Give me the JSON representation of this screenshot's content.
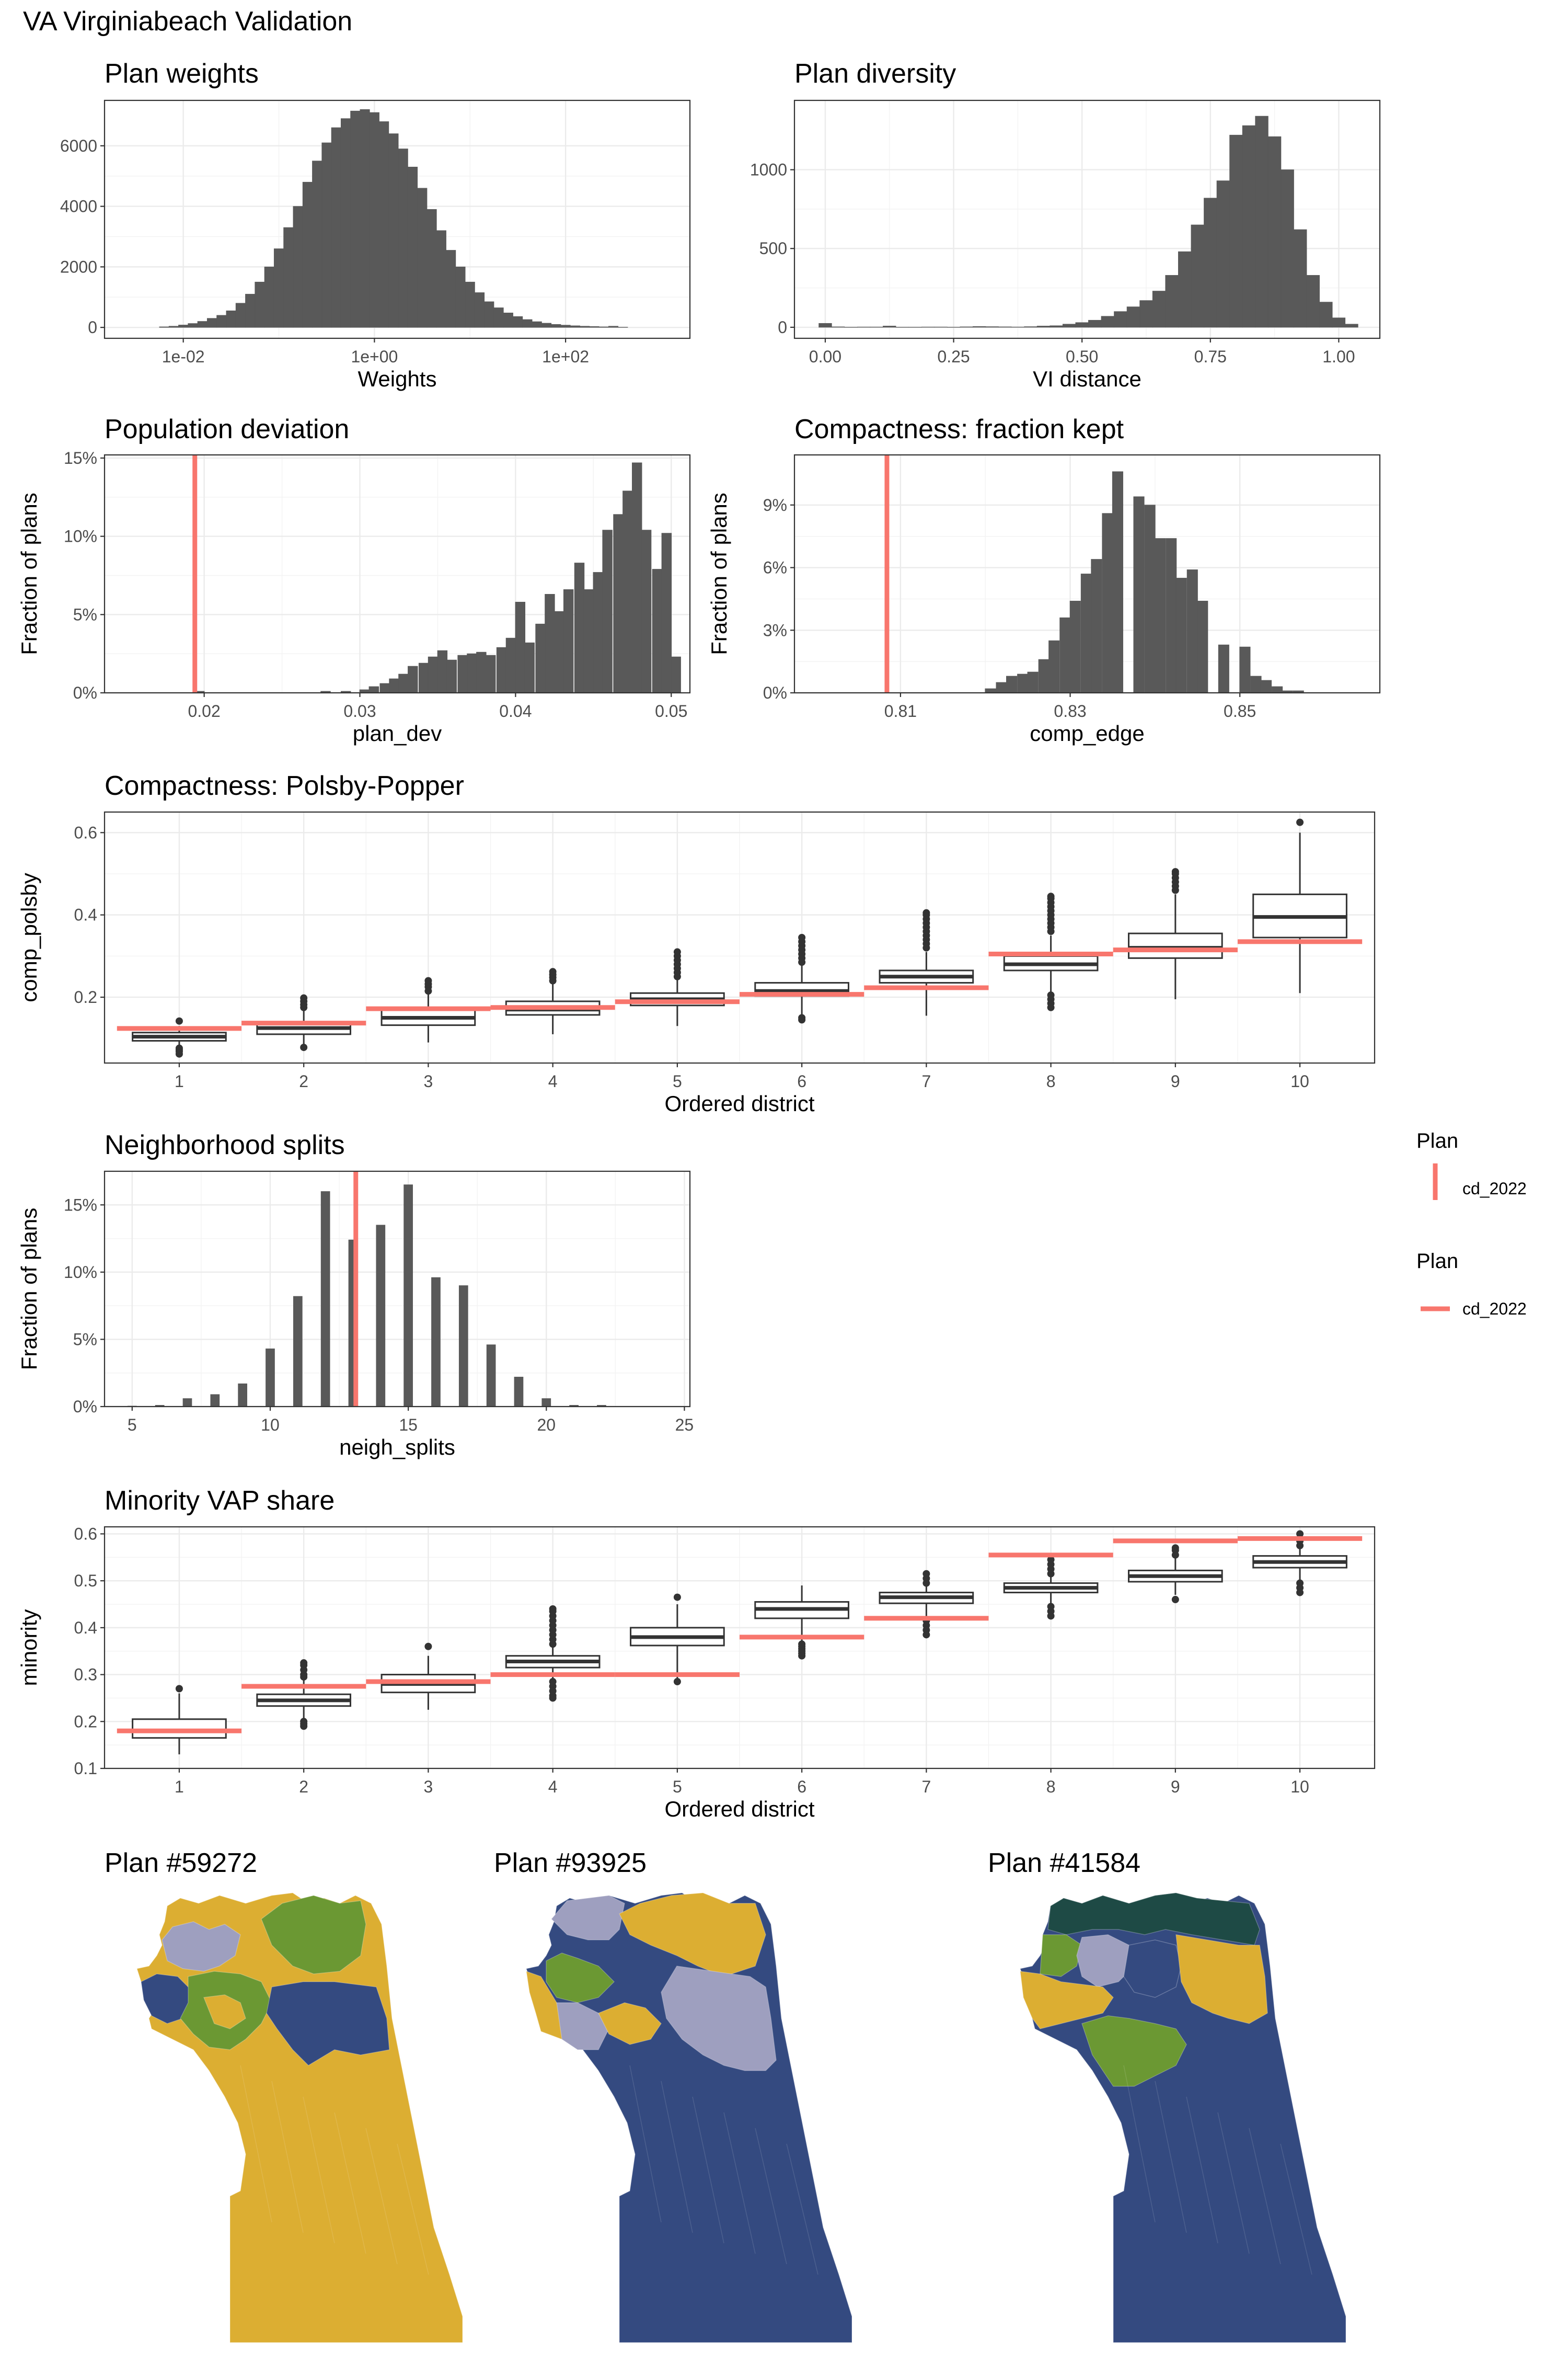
{
  "figure_title": "VA Virginiabeach Validation",
  "colors": {
    "bar": "#595959",
    "reference": "#f8766d",
    "box_line": "#333333",
    "map_yellow": "#dcae32",
    "map_navy": "#344a80",
    "map_green": "#6b9833",
    "map_lavender": "#9e9fbf",
    "map_darkgreen": "#1e4a45"
  },
  "legends": [
    {
      "title": "Plan",
      "label": "cd_2022",
      "key": "vertical-line"
    },
    {
      "title": "Plan",
      "label": "cd_2022",
      "key": "horizontal-line"
    }
  ],
  "chart_data": [
    {
      "id": "weights",
      "type": "bar",
      "title": "Plan weights",
      "xlabel": "Weights",
      "ylabel": "",
      "x_scale": "log10",
      "xlim": [
        0.0015,
        2000
      ],
      "ylim": [
        -360,
        7500
      ],
      "x_ticks": [
        0.01,
        1,
        100
      ],
      "x_tick_labels": [
        "1e-02",
        "1e+00",
        "1e+02"
      ],
      "y_ticks": [
        0,
        2000,
        4000,
        6000
      ],
      "y_tick_labels": [
        "0",
        "2000",
        "4000",
        "6000"
      ],
      "bin_centers_log10": [
        -2.2,
        -2.1,
        -2.0,
        -1.9,
        -1.8,
        -1.7,
        -1.6,
        -1.5,
        -1.4,
        -1.3,
        -1.2,
        -1.1,
        -1.0,
        -0.9,
        -0.8,
        -0.7,
        -0.6,
        -0.5,
        -0.4,
        -0.3,
        -0.2,
        -0.1,
        0.0,
        0.1,
        0.2,
        0.3,
        0.4,
        0.5,
        0.6,
        0.7,
        0.8,
        0.9,
        1.0,
        1.1,
        1.2,
        1.3,
        1.4,
        1.5,
        1.6,
        1.7,
        1.8,
        1.9,
        2.0,
        2.1,
        2.2,
        2.3,
        2.4,
        2.5,
        2.6
      ],
      "values": [
        20,
        40,
        80,
        130,
        200,
        300,
        400,
        550,
        800,
        1100,
        1500,
        2000,
        2600,
        3300,
        4000,
        4800,
        5500,
        6100,
        6600,
        6900,
        7150,
        7200,
        7100,
        6800,
        6400,
        5900,
        5300,
        4600,
        3900,
        3200,
        2550,
        2000,
        1500,
        1150,
        850,
        650,
        480,
        360,
        260,
        190,
        140,
        100,
        75,
        55,
        40,
        30,
        20,
        40,
        10
      ]
    },
    {
      "id": "diversity",
      "type": "bar",
      "title": "Plan diversity",
      "xlabel": "VI distance",
      "ylabel": "",
      "xlim": [
        -0.06,
        1.08
      ],
      "ylim": [
        -70,
        1440
      ],
      "x_ticks": [
        0,
        0.25,
        0.5,
        0.75,
        1
      ],
      "x_tick_labels": [
        "0.00",
        "0.25",
        "0.50",
        "0.75",
        "1.00"
      ],
      "y_ticks": [
        0,
        500,
        1000
      ],
      "y_tick_labels": [
        "0",
        "500",
        "1000"
      ],
      "bin_width": 0.025,
      "bin_centers": [
        0.0,
        0.025,
        0.05,
        0.075,
        0.1,
        0.125,
        0.15,
        0.175,
        0.2,
        0.225,
        0.25,
        0.275,
        0.3,
        0.325,
        0.35,
        0.375,
        0.4,
        0.425,
        0.45,
        0.475,
        0.5,
        0.525,
        0.55,
        0.575,
        0.6,
        0.625,
        0.65,
        0.675,
        0.7,
        0.725,
        0.75,
        0.775,
        0.8,
        0.825,
        0.85,
        0.875,
        0.9,
        0.925,
        0.95,
        0.975,
        1.0,
        1.025
      ],
      "values": [
        25,
        3,
        1,
        2,
        2,
        8,
        1,
        1,
        2,
        2,
        1,
        3,
        5,
        4,
        3,
        2,
        4,
        8,
        10,
        20,
        30,
        45,
        70,
        100,
        130,
        170,
        230,
        330,
        480,
        650,
        820,
        930,
        1220,
        1280,
        1340,
        1210,
        1000,
        620,
        330,
        160,
        60,
        20
      ]
    },
    {
      "id": "popdev",
      "type": "bar",
      "title": "Population deviation",
      "xlabel": "plan_dev",
      "ylabel": "Fraction of plans",
      "xlim": [
        0.0136,
        0.0512
      ],
      "ylim": [
        0,
        0.152
      ],
      "x_ticks": [
        0.02,
        0.03,
        0.04,
        0.05
      ],
      "x_tick_labels": [
        "0.02",
        "0.03",
        "0.04",
        "0.05"
      ],
      "y_ticks": [
        0,
        0.05,
        0.1,
        0.15
      ],
      "y_tick_labels": [
        "0%",
        "5%",
        "10%",
        "15%"
      ],
      "reference_x": 0.0194,
      "bin_width": 0.000625,
      "bin_centers": [
        0.0197,
        0.0203,
        0.0209,
        0.0216,
        0.0222,
        0.0228,
        0.0234,
        0.0241,
        0.0247,
        0.0253,
        0.0259,
        0.0266,
        0.0272,
        0.0278,
        0.0284,
        0.0291,
        0.0297,
        0.0303,
        0.0309,
        0.0316,
        0.0322,
        0.0328,
        0.0334,
        0.0341,
        0.0347,
        0.0353,
        0.0359,
        0.0366,
        0.0372,
        0.0378,
        0.0384,
        0.0391,
        0.0397,
        0.0403,
        0.0409,
        0.0416,
        0.0422,
        0.0428,
        0.0434,
        0.0441,
        0.0447,
        0.0453,
        0.0459,
        0.0466,
        0.0472,
        0.0478,
        0.0484,
        0.0491,
        0.0497,
        0.0503
      ],
      "values": [
        0.001,
        0,
        0,
        0,
        0,
        0,
        0,
        0,
        0,
        0,
        0,
        0,
        0,
        0.001,
        0,
        0.001,
        0,
        0.002,
        0.004,
        0.006,
        0.009,
        0.012,
        0.017,
        0.019,
        0.023,
        0.027,
        0.021,
        0.024,
        0.025,
        0.026,
        0.024,
        0.029,
        0.035,
        0.058,
        0.032,
        0.044,
        0.063,
        0.052,
        0.066,
        0.083,
        0.066,
        0.077,
        0.104,
        0.114,
        0.129,
        0.147,
        0.104,
        0.079,
        0.102,
        0.023
      ]
    },
    {
      "id": "compedge",
      "type": "bar",
      "title": "Compactness: fraction kept",
      "xlabel": "comp_edge",
      "ylabel": "Fraction of plans",
      "xlim": [
        0.7975,
        0.8665
      ],
      "ylim": [
        0,
        0.114
      ],
      "x_ticks": [
        0.81,
        0.83,
        0.85
      ],
      "x_tick_labels": [
        "0.81",
        "0.83",
        "0.85"
      ],
      "y_ticks": [
        0,
        0.03,
        0.06,
        0.09
      ],
      "y_tick_labels": [
        "0%",
        "3%",
        "6%",
        "9%"
      ],
      "reference_x": 0.8084,
      "bin_width": 0.00125,
      "bin_centers": [
        0.8206,
        0.8219,
        0.8231,
        0.8244,
        0.8256,
        0.8269,
        0.8281,
        0.8294,
        0.8306,
        0.8319,
        0.8331,
        0.8344,
        0.8356,
        0.8369,
        0.8381,
        0.8394,
        0.8406,
        0.8419,
        0.8431,
        0.8444,
        0.8456,
        0.8469,
        0.8481,
        0.8494,
        0.8506,
        0.8519,
        0.8531,
        0.8544,
        0.8556,
        0.8569,
        0.8581,
        0.8594,
        0.8606
      ],
      "values": [
        0.002,
        0.005,
        0.008,
        0.009,
        0.01,
        0.016,
        0.025,
        0.036,
        0.044,
        0.057,
        0.064,
        0.086,
        0.106,
        0,
        0.094,
        0.09,
        0.074,
        0.074,
        0.055,
        0.059,
        0.044,
        0,
        0.023,
        0,
        0.022,
        0.008,
        0.006,
        0.003,
        0.001,
        0.001,
        0,
        0,
        0
      ]
    },
    {
      "id": "polsby",
      "type": "box",
      "title": "Compactness: Polsby-Popper",
      "xlabel": "Ordered district",
      "ylabel": "comp_polsby",
      "categories": [
        "1",
        "2",
        "3",
        "4",
        "5",
        "6",
        "7",
        "8",
        "9",
        "10"
      ],
      "ylim": [
        0.04,
        0.65
      ],
      "y_ticks": [
        0.2,
        0.4,
        0.6
      ],
      "y_tick_labels": [
        "0.2",
        "0.4",
        "0.6"
      ],
      "boxes": [
        {
          "min": 0.08,
          "q1": 0.094,
          "median": 0.104,
          "q3": 0.114,
          "max": 0.13,
          "outliers": [
            0.062,
            0.068,
            0.072,
            0.076,
            0.142
          ]
        },
        {
          "min": 0.075,
          "q1": 0.11,
          "median": 0.125,
          "q3": 0.14,
          "max": 0.17,
          "outliers": [
            0.078,
            0.175,
            0.182,
            0.19,
            0.198
          ]
        },
        {
          "min": 0.09,
          "q1": 0.132,
          "median": 0.15,
          "q3": 0.17,
          "max": 0.21,
          "outliers": [
            0.215,
            0.225,
            0.232,
            0.24
          ]
        },
        {
          "min": 0.11,
          "q1": 0.157,
          "median": 0.17,
          "q3": 0.19,
          "max": 0.235,
          "outliers": [
            0.24,
            0.248,
            0.255,
            0.262
          ]
        },
        {
          "min": 0.13,
          "q1": 0.18,
          "median": 0.195,
          "q3": 0.21,
          "max": 0.245,
          "outliers": [
            0.25,
            0.26,
            0.27,
            0.28,
            0.29,
            0.3,
            0.31
          ]
        },
        {
          "min": 0.14,
          "q1": 0.203,
          "median": 0.215,
          "q3": 0.235,
          "max": 0.28,
          "outliers": [
            0.285,
            0.295,
            0.305,
            0.315,
            0.325,
            0.335,
            0.345,
            0.145,
            0.15
          ]
        },
        {
          "min": 0.155,
          "q1": 0.235,
          "median": 0.25,
          "q3": 0.265,
          "max": 0.31,
          "outliers": [
            0.32,
            0.33,
            0.34,
            0.35,
            0.36,
            0.37,
            0.38,
            0.39,
            0.4,
            0.405
          ]
        },
        {
          "min": 0.19,
          "q1": 0.265,
          "median": 0.28,
          "q3": 0.3,
          "max": 0.35,
          "outliers": [
            0.36,
            0.37,
            0.38,
            0.39,
            0.4,
            0.41,
            0.42,
            0.43,
            0.44,
            0.445,
            0.205,
            0.195,
            0.185,
            0.175
          ]
        },
        {
          "min": 0.195,
          "q1": 0.295,
          "median": 0.32,
          "q3": 0.355,
          "max": 0.45,
          "outliers": [
            0.46,
            0.47,
            0.48,
            0.49,
            0.5,
            0.505
          ]
        },
        {
          "min": 0.21,
          "q1": 0.345,
          "median": 0.395,
          "q3": 0.45,
          "max": 0.6,
          "outliers": [
            0.625
          ]
        }
      ],
      "reference": [
        0.124,
        0.137,
        0.172,
        0.175,
        0.189,
        0.207,
        0.223,
        0.305,
        0.315,
        0.335
      ]
    },
    {
      "id": "neigh",
      "type": "bar",
      "title": "Neighborhood splits",
      "xlabel": "neigh_splits",
      "ylabel": "Fraction of plans",
      "xlim": [
        4,
        25.2
      ],
      "ylim": [
        0,
        0.175
      ],
      "x_ticks": [
        5,
        10,
        15,
        20,
        25
      ],
      "x_tick_labels": [
        "5",
        "10",
        "15",
        "20",
        "25"
      ],
      "y_ticks": [
        0,
        0.05,
        0.1,
        0.15
      ],
      "y_tick_labels": [
        "0%",
        "5%",
        "10%",
        "15%"
      ],
      "reference_x": 13.1,
      "bar_width": 0.32,
      "bin_centers": [
        5,
        6,
        7,
        8,
        9,
        10,
        11,
        12,
        13,
        14,
        15,
        16,
        17,
        18,
        19,
        20,
        21,
        22,
        23,
        24
      ],
      "values": [
        0.0004,
        0.001,
        0.006,
        0.009,
        0.017,
        0.043,
        0.082,
        0.16,
        0.124,
        0.135,
        0.165,
        0.096,
        0.09,
        0.046,
        0.022,
        0.006,
        0.001,
        0.001,
        0.0002,
        0
      ]
    },
    {
      "id": "minority",
      "type": "box",
      "title": "Minority VAP share",
      "xlabel": "Ordered district",
      "ylabel": "minority",
      "categories": [
        "1",
        "2",
        "3",
        "4",
        "5",
        "6",
        "7",
        "8",
        "9",
        "10"
      ],
      "ylim": [
        0.1,
        0.615
      ],
      "y_ticks": [
        0.1,
        0.2,
        0.3,
        0.4,
        0.5,
        0.6
      ],
      "y_tick_labels": [
        "0.1",
        "0.2",
        "0.3",
        "0.4",
        "0.5",
        "0.6"
      ],
      "boxes": [
        {
          "min": 0.13,
          "q1": 0.165,
          "median": 0.18,
          "q3": 0.205,
          "max": 0.26,
          "outliers": [
            0.27
          ]
        },
        {
          "min": 0.2,
          "q1": 0.233,
          "median": 0.245,
          "q3": 0.258,
          "max": 0.29,
          "outliers": [
            0.295,
            0.3,
            0.31,
            0.32,
            0.325,
            0.2,
            0.195,
            0.19
          ]
        },
        {
          "min": 0.225,
          "q1": 0.262,
          "median": 0.28,
          "q3": 0.3,
          "max": 0.34,
          "outliers": [
            0.36
          ]
        },
        {
          "min": 0.265,
          "q1": 0.315,
          "median": 0.328,
          "q3": 0.34,
          "max": 0.36,
          "outliers": [
            0.365,
            0.375,
            0.385,
            0.395,
            0.405,
            0.415,
            0.425,
            0.435,
            0.44,
            0.285,
            0.275,
            0.265,
            0.255,
            0.25
          ]
        },
        {
          "min": 0.29,
          "q1": 0.362,
          "median": 0.38,
          "q3": 0.4,
          "max": 0.45,
          "outliers": [
            0.465,
            0.285
          ]
        },
        {
          "min": 0.37,
          "q1": 0.42,
          "median": 0.44,
          "q3": 0.455,
          "max": 0.49,
          "outliers": [
            0.365,
            0.36,
            0.355,
            0.35,
            0.345,
            0.34
          ]
        },
        {
          "min": 0.42,
          "q1": 0.452,
          "median": 0.465,
          "q3": 0.475,
          "max": 0.49,
          "outliers": [
            0.495,
            0.505,
            0.515,
            0.415,
            0.405,
            0.395,
            0.385
          ]
        },
        {
          "min": 0.45,
          "q1": 0.475,
          "median": 0.485,
          "q3": 0.495,
          "max": 0.51,
          "outliers": [
            0.515,
            0.525,
            0.535,
            0.545,
            0.445,
            0.435,
            0.425
          ]
        },
        {
          "min": 0.47,
          "q1": 0.498,
          "median": 0.51,
          "q3": 0.522,
          "max": 0.55,
          "outliers": [
            0.555,
            0.565,
            0.57,
            0.46
          ]
        },
        {
          "min": 0.5,
          "q1": 0.528,
          "median": 0.54,
          "q3": 0.553,
          "max": 0.57,
          "outliers": [
            0.575,
            0.585,
            0.6,
            0.495,
            0.485,
            0.475
          ]
        }
      ],
      "reference": [
        0.18,
        0.275,
        0.285,
        0.3,
        0.3,
        0.38,
        0.42,
        0.555,
        0.585,
        0.59
      ]
    }
  ],
  "maps": [
    {
      "title": "Plan #59272",
      "district_colors": [
        "yellow",
        "green",
        "lavender",
        "navy"
      ]
    },
    {
      "title": "Plan #93925",
      "district_colors": [
        "lavender",
        "yellow",
        "green",
        "navy"
      ]
    },
    {
      "title": "Plan #41584",
      "district_colors": [
        "darkgreen",
        "green",
        "lavender",
        "yellow",
        "navy"
      ]
    }
  ]
}
